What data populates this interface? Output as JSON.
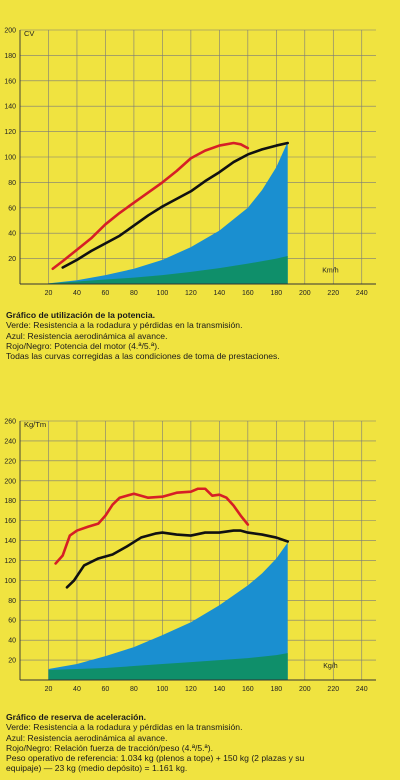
{
  "chart_data": [
    {
      "type": "line",
      "ylabel": "CV",
      "xlabel": "Km/h",
      "xlim": [
        0,
        250
      ],
      "ylim": [
        0,
        200
      ],
      "x_ticks": [
        20,
        40,
        60,
        80,
        100,
        120,
        140,
        160,
        180,
        200,
        220,
        240
      ],
      "y_ticks": [
        20,
        40,
        60,
        80,
        100,
        120,
        140,
        160,
        180,
        200
      ],
      "grid": true,
      "colors": {
        "green": "#0f8f6a",
        "blue": "#1a8fd0",
        "red": "#d61f26",
        "black": "#111111",
        "grid": "#7a7a7a"
      },
      "series": [
        {
          "color": "green",
          "kind": "area",
          "x": [
            20,
            40,
            60,
            80,
            100,
            120,
            140,
            160,
            180,
            188
          ],
          "y": [
            0.5,
            2,
            3.5,
            5,
            7,
            9.5,
            12.5,
            16,
            20,
            22
          ]
        },
        {
          "color": "blue",
          "kind": "area",
          "x": [
            20,
            40,
            60,
            80,
            100,
            120,
            140,
            160,
            170,
            180,
            188
          ],
          "y": [
            0.5,
            3,
            7,
            12,
            19,
            29,
            42,
            60,
            74,
            92,
            112
          ]
        },
        {
          "color": "black",
          "kind": "line",
          "x": [
            30,
            40,
            50,
            60,
            70,
            80,
            90,
            100,
            110,
            120,
            130,
            140,
            150,
            160,
            170,
            180,
            188
          ],
          "y": [
            13,
            19,
            26,
            32,
            38,
            46,
            54,
            61,
            67,
            73,
            81,
            88,
            96,
            102,
            106,
            109,
            111
          ]
        },
        {
          "color": "red",
          "kind": "line",
          "x": [
            23,
            30,
            40,
            50,
            60,
            70,
            80,
            90,
            100,
            110,
            120,
            130,
            140,
            150,
            155,
            160
          ],
          "y": [
            12,
            18,
            27,
            36,
            47,
            56,
            64,
            72,
            80,
            89,
            99,
            105,
            109,
            111,
            110,
            107
          ]
        }
      ]
    },
    {
      "type": "line",
      "ylabel": "Kg/Tm",
      "xlabel": "Kg/h",
      "xlim": [
        0,
        250
      ],
      "ylim": [
        0,
        260
      ],
      "x_ticks": [
        20,
        40,
        60,
        80,
        100,
        120,
        140,
        160,
        180,
        200,
        220,
        240
      ],
      "y_ticks": [
        20,
        40,
        60,
        80,
        100,
        120,
        140,
        160,
        180,
        200,
        220,
        240,
        260
      ],
      "grid": true,
      "colors": {
        "green": "#0f8f6a",
        "blue": "#1a8fd0",
        "red": "#d61f26",
        "black": "#111111",
        "grid": "#7a7a7a"
      },
      "series": [
        {
          "color": "green",
          "kind": "area",
          "x": [
            20,
            40,
            60,
            80,
            100,
            120,
            140,
            160,
            180,
            188
          ],
          "y": [
            10,
            11,
            12,
            14,
            16,
            18,
            20,
            22,
            25,
            27
          ]
        },
        {
          "color": "blue",
          "kind": "area",
          "x": [
            20,
            40,
            60,
            80,
            100,
            120,
            140,
            160,
            170,
            180,
            188
          ],
          "y": [
            11,
            16,
            24,
            33,
            45,
            58,
            75,
            95,
            107,
            122,
            138
          ]
        },
        {
          "color": "black",
          "kind": "line",
          "x": [
            33,
            38,
            45,
            55,
            65,
            75,
            85,
            95,
            100,
            110,
            120,
            130,
            140,
            150,
            155,
            160,
            170,
            180,
            188
          ],
          "y": [
            93,
            100,
            115,
            122,
            126,
            134,
            143,
            147,
            148,
            146,
            145,
            148,
            148,
            150,
            150,
            148,
            146,
            143,
            139
          ]
        },
        {
          "color": "red",
          "kind": "line",
          "x": [
            25,
            30,
            35,
            40,
            48,
            55,
            60,
            65,
            70,
            80,
            90,
            100,
            110,
            120,
            125,
            130,
            135,
            140,
            145,
            150,
            155,
            160
          ],
          "y": [
            117,
            125,
            145,
            150,
            154,
            157,
            165,
            176,
            183,
            187,
            183,
            184,
            188,
            189,
            192,
            192,
            185,
            186,
            183,
            175,
            165,
            156
          ]
        }
      ]
    }
  ],
  "captions": [
    {
      "title": "Gráfico de utilización de la potencia.",
      "lines": [
        "Verde: Resistencia a la rodadura y pérdidas en la transmisión.",
        "Azul: Resistencia aerodinámica al avance.",
        "Rojo/Negro: Potencia del motor (4.ª/5.ª).",
        "Todas las curvas corregidas a las condiciones de toma de prestaciones."
      ]
    },
    {
      "title": "Gráfico de reserva de aceleración.",
      "lines": [
        "Verde: Resistencia a la rodadura y pérdidas en la transmisión.",
        "Azul: Resistencia aerodinámica al avance.",
        "Rojo/Negro: Relación fuerza de tracción/peso (4.ª/5.ª).",
        "Peso operativo de referencia: 1.034 kg (plenos a tope) + 150 kg (2 plazas y su",
        "equipaje) — 23 kg (medio depósito) = 1.161 kg."
      ]
    }
  ]
}
